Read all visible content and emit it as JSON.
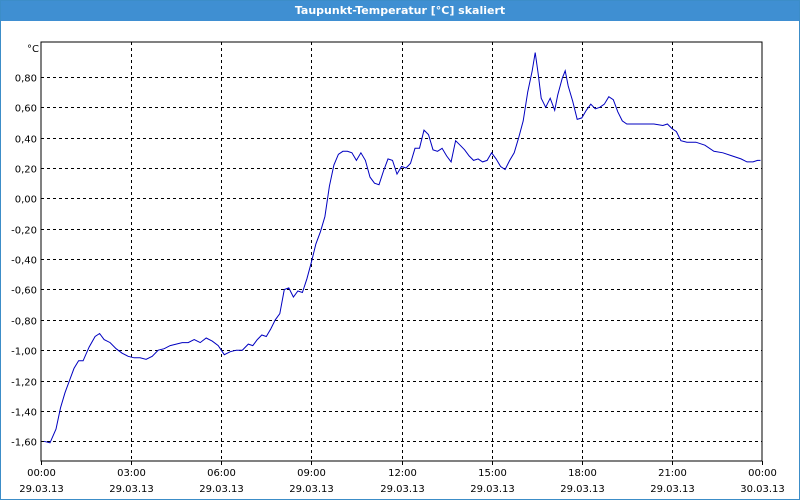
{
  "window": {
    "title": "Taupunkt-Temperatur [°C] skaliert"
  },
  "chart_data": {
    "type": "line",
    "title": "Taupunkt-Temperatur [°C] skaliert",
    "ylabel": "°C",
    "xlabel": "",
    "ylim": [
      -1.73,
      1.03
    ],
    "xlim": [
      0,
      24
    ],
    "grid": true,
    "legend": "none",
    "line_color": "#0000c0",
    "y_ticks": [
      {
        "v": 0.8,
        "label": "0,80"
      },
      {
        "v": 0.6,
        "label": "0,60"
      },
      {
        "v": 0.4,
        "label": "0,40"
      },
      {
        "v": 0.2,
        "label": "0,20"
      },
      {
        "v": 0.0,
        "label": "0,00"
      },
      {
        "v": -0.2,
        "label": "-0,20"
      },
      {
        "v": -0.4,
        "label": "-0,40"
      },
      {
        "v": -0.6,
        "label": "-0,60"
      },
      {
        "v": -0.8,
        "label": "-0,80"
      },
      {
        "v": -1.0,
        "label": "-1,00"
      },
      {
        "v": -1.2,
        "label": "-1,20"
      },
      {
        "v": -1.4,
        "label": "-1,40"
      },
      {
        "v": -1.6,
        "label": "-1,60"
      }
    ],
    "x_ticks": [
      {
        "v": 0,
        "time": "00:00",
        "date": "29.03.13"
      },
      {
        "v": 3,
        "time": "03:00",
        "date": "29.03.13"
      },
      {
        "v": 6,
        "time": "06:00",
        "date": "29.03.13"
      },
      {
        "v": 9,
        "time": "09:00",
        "date": "29.03.13"
      },
      {
        "v": 12,
        "time": "12:00",
        "date": "29.03.13"
      },
      {
        "v": 15,
        "time": "15:00",
        "date": "29.03.13"
      },
      {
        "v": 18,
        "time": "18:00",
        "date": "29.03.13"
      },
      {
        "v": 21,
        "time": "21:00",
        "date": "29.03.13"
      },
      {
        "v": 24,
        "time": "00:00",
        "date": "30.03.13"
      }
    ],
    "series": [
      {
        "points": [
          [
            0.1,
            -1.6
          ],
          [
            0.3,
            -1.61
          ],
          [
            0.5,
            -1.52
          ],
          [
            0.65,
            -1.38
          ],
          [
            0.8,
            -1.28
          ],
          [
            0.95,
            -1.2
          ],
          [
            1.1,
            -1.12
          ],
          [
            1.25,
            -1.07
          ],
          [
            1.4,
            -1.07
          ],
          [
            1.6,
            -0.98
          ],
          [
            1.8,
            -0.91
          ],
          [
            1.95,
            -0.89
          ],
          [
            2.1,
            -0.93
          ],
          [
            2.3,
            -0.95
          ],
          [
            2.5,
            -0.99
          ],
          [
            2.7,
            -1.02
          ],
          [
            2.9,
            -1.04
          ],
          [
            3.1,
            -1.05
          ],
          [
            3.3,
            -1.05
          ],
          [
            3.5,
            -1.06
          ],
          [
            3.7,
            -1.04
          ],
          [
            3.9,
            -1.0
          ],
          [
            4.1,
            -0.99
          ],
          [
            4.3,
            -0.97
          ],
          [
            4.5,
            -0.96
          ],
          [
            4.7,
            -0.95
          ],
          [
            4.9,
            -0.95
          ],
          [
            5.1,
            -0.93
          ],
          [
            5.3,
            -0.95
          ],
          [
            5.5,
            -0.92
          ],
          [
            5.7,
            -0.94
          ],
          [
            5.9,
            -0.97
          ],
          [
            6.1,
            -1.03
          ],
          [
            6.3,
            -1.01
          ],
          [
            6.5,
            -1.0
          ],
          [
            6.7,
            -1.0
          ],
          [
            6.9,
            -0.96
          ],
          [
            7.05,
            -0.97
          ],
          [
            7.2,
            -0.93
          ],
          [
            7.35,
            -0.9
          ],
          [
            7.5,
            -0.91
          ],
          [
            7.65,
            -0.86
          ],
          [
            7.8,
            -0.8
          ],
          [
            7.95,
            -0.76
          ],
          [
            8.1,
            -0.6
          ],
          [
            8.25,
            -0.59
          ],
          [
            8.4,
            -0.65
          ],
          [
            8.55,
            -0.61
          ],
          [
            8.7,
            -0.62
          ],
          [
            8.85,
            -0.53
          ],
          [
            9.0,
            -0.42
          ],
          [
            9.15,
            -0.3
          ],
          [
            9.3,
            -0.22
          ],
          [
            9.45,
            -0.12
          ],
          [
            9.6,
            0.08
          ],
          [
            9.75,
            0.22
          ],
          [
            9.9,
            0.29
          ],
          [
            10.05,
            0.31
          ],
          [
            10.2,
            0.31
          ],
          [
            10.35,
            0.3
          ],
          [
            10.5,
            0.25
          ],
          [
            10.65,
            0.3
          ],
          [
            10.8,
            0.25
          ],
          [
            10.95,
            0.14
          ],
          [
            11.1,
            0.1
          ],
          [
            11.25,
            0.09
          ],
          [
            11.4,
            0.18
          ],
          [
            11.55,
            0.26
          ],
          [
            11.7,
            0.25
          ],
          [
            11.85,
            0.16
          ],
          [
            12.0,
            0.21
          ],
          [
            12.15,
            0.2
          ],
          [
            12.3,
            0.23
          ],
          [
            12.45,
            0.33
          ],
          [
            12.6,
            0.33
          ],
          [
            12.75,
            0.45
          ],
          [
            12.9,
            0.42
          ],
          [
            13.05,
            0.32
          ],
          [
            13.2,
            0.31
          ],
          [
            13.35,
            0.33
          ],
          [
            13.5,
            0.28
          ],
          [
            13.65,
            0.24
          ],
          [
            13.8,
            0.38
          ],
          [
            13.95,
            0.35
          ],
          [
            14.1,
            0.32
          ],
          [
            14.25,
            0.28
          ],
          [
            14.4,
            0.25
          ],
          [
            14.55,
            0.26
          ],
          [
            14.7,
            0.24
          ],
          [
            14.85,
            0.25
          ],
          [
            15.0,
            0.3
          ],
          [
            15.15,
            0.26
          ],
          [
            15.3,
            0.21
          ],
          [
            15.45,
            0.19
          ],
          [
            15.6,
            0.25
          ],
          [
            15.75,
            0.3
          ],
          [
            15.9,
            0.4
          ],
          [
            16.05,
            0.51
          ],
          [
            16.2,
            0.7
          ],
          [
            16.35,
            0.84
          ],
          [
            16.45,
            0.96
          ],
          [
            16.55,
            0.82
          ],
          [
            16.65,
            0.66
          ],
          [
            16.8,
            0.6
          ],
          [
            16.95,
            0.66
          ],
          [
            17.1,
            0.58
          ],
          [
            17.2,
            0.68
          ],
          [
            17.35,
            0.79
          ],
          [
            17.45,
            0.84
          ],
          [
            17.55,
            0.74
          ],
          [
            17.7,
            0.64
          ],
          [
            17.85,
            0.52
          ],
          [
            18.0,
            0.53
          ],
          [
            18.15,
            0.58
          ],
          [
            18.3,
            0.62
          ],
          [
            18.45,
            0.59
          ],
          [
            18.6,
            0.6
          ],
          [
            18.75,
            0.62
          ],
          [
            18.9,
            0.67
          ],
          [
            19.05,
            0.65
          ],
          [
            19.2,
            0.57
          ],
          [
            19.35,
            0.51
          ],
          [
            19.5,
            0.49
          ],
          [
            19.8,
            0.49
          ],
          [
            20.1,
            0.49
          ],
          [
            20.4,
            0.49
          ],
          [
            20.7,
            0.48
          ],
          [
            20.85,
            0.49
          ],
          [
            21.0,
            0.46
          ],
          [
            21.15,
            0.44
          ],
          [
            21.3,
            0.38
          ],
          [
            21.5,
            0.37
          ],
          [
            21.8,
            0.37
          ],
          [
            22.1,
            0.35
          ],
          [
            22.4,
            0.31
          ],
          [
            22.7,
            0.3
          ],
          [
            23.0,
            0.28
          ],
          [
            23.3,
            0.26
          ],
          [
            23.5,
            0.24
          ],
          [
            23.7,
            0.24
          ],
          [
            23.85,
            0.25
          ],
          [
            23.95,
            0.25
          ]
        ]
      }
    ]
  }
}
